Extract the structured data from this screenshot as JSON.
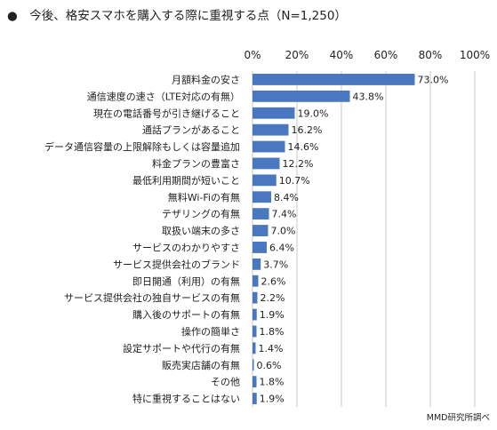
{
  "title": "●　今後、格安スマホを購入する際に重視する点（N=1,250）",
  "source": "MMD研究所調べ",
  "chart_data": {
    "type": "bar",
    "orientation": "horizontal",
    "title": "今後、格安スマホを購入する際に重視する点（N=1,250）",
    "xlim": [
      0,
      100
    ],
    "x_ticks": [
      "0%",
      "20%",
      "40%",
      "60%",
      "80%",
      "100%"
    ],
    "x_tick_values": [
      0,
      20,
      40,
      60,
      80,
      100
    ],
    "grid": true,
    "bar_color": "#4a78c0",
    "categories": [
      "月額料金の安さ",
      "通信速度の速さ（LTE対応の有無）",
      "現在の電話番号が引き継げること",
      "通話プランがあること",
      "データ通信容量の上限解除もしくは容量追加",
      "料金プランの豊富さ",
      "最低利用期間が短いこと",
      "無料Wi-Fiの有無",
      "テザリングの有無",
      "取扱い端末の多さ",
      "サービスのわかりやすさ",
      "サービス提供会社のブランド",
      "即日開通（利用）の有無",
      "サービス提供会社の独自サービスの有無",
      "購入後のサポートの有無",
      "操作の簡単さ",
      "設定サポートや代行の有無",
      "販売実店舗の有無",
      "その他",
      "特に重視することはない"
    ],
    "values": [
      73.0,
      43.8,
      19.0,
      16.2,
      14.6,
      12.2,
      10.7,
      8.4,
      7.4,
      7.0,
      6.4,
      3.7,
      2.6,
      2.2,
      1.9,
      1.8,
      1.4,
      0.6,
      1.8,
      1.9
    ],
    "value_labels": [
      "73.0%",
      "43.8%",
      "19.0%",
      "16.2%",
      "14.6%",
      "12.2%",
      "10.7%",
      "8.4%",
      "7.4%",
      "7.0%",
      "6.4%",
      "3.7%",
      "2.6%",
      "2.2%",
      "1.9%",
      "1.8%",
      "1.4%",
      "0.6%",
      "1.8%",
      "1.9%"
    ]
  }
}
